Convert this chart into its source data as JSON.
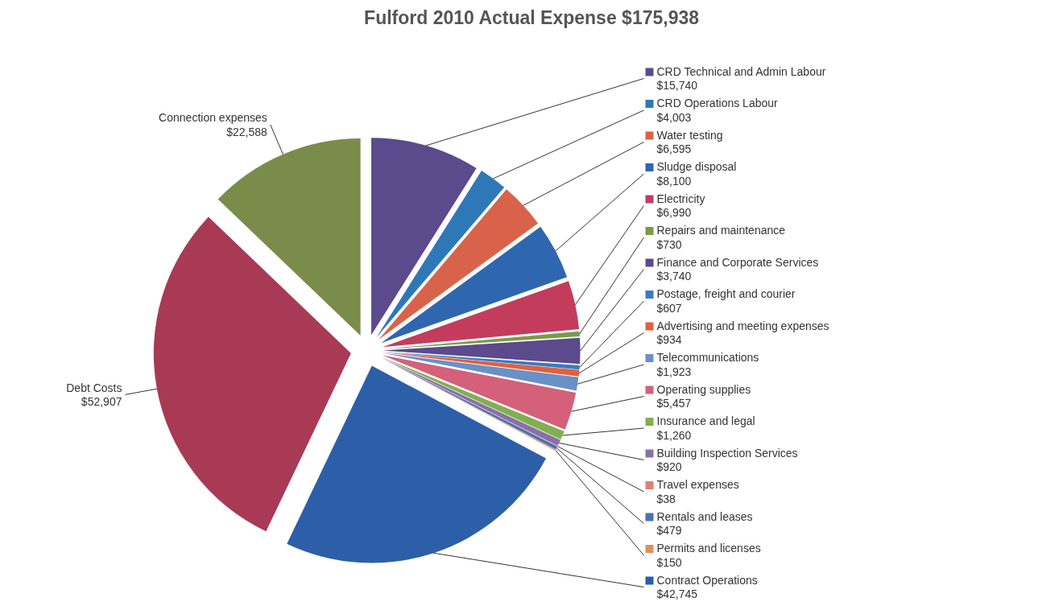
{
  "chart_data": {
    "type": "pie",
    "title": "Fulford 2010 Actual Expense $175,938",
    "categories": [
      "CRD Technical and Admin Labour",
      "CRD Operations Labour",
      "Water testing",
      "Sludge disposal",
      "Electricity",
      "Repairs and maintenance",
      "Finance and Corporate Services",
      "Postage, freight and courier",
      "Advertising and meeting expenses",
      "Telecommunications",
      "Operating supplies",
      "Insurance and legal",
      "Building Inspection Services",
      "Travel expenses",
      "Rentals and leases",
      "Permits and licenses",
      "Contract Operations",
      "Debt Costs",
      "Connection expenses"
    ],
    "values": [
      15740,
      4003,
      6595,
      8100,
      6990,
      730,
      3740,
      607,
      934,
      1923,
      5457,
      1260,
      920,
      38,
      479,
      150,
      42745,
      52907,
      22588
    ],
    "value_labels": [
      "$15,740",
      "$4,003",
      "$6,595",
      "$8,100",
      "$6,990",
      "$730",
      "$3,740",
      "$607",
      "$934",
      "$1,923",
      "$5,457",
      "$1,260",
      "$920",
      "$38",
      "$479",
      "$150",
      "$42,745",
      "$52,907",
      "$22,588"
    ],
    "legend": "right",
    "colors": [
      "#5b4a8c",
      "#2f78b8",
      "#d9634a",
      "#2f66b0",
      "#c43c5c",
      "#7a9a4a",
      "#5b4a8c",
      "#3a7abf",
      "#e0603f",
      "#6a90c8",
      "#d4607a",
      "#80b050",
      "#8a70a8",
      "#e08070",
      "#4a70b0",
      "#e09060",
      "#2c5fa8",
      "#a83a55",
      "#7a8c4a"
    ]
  }
}
